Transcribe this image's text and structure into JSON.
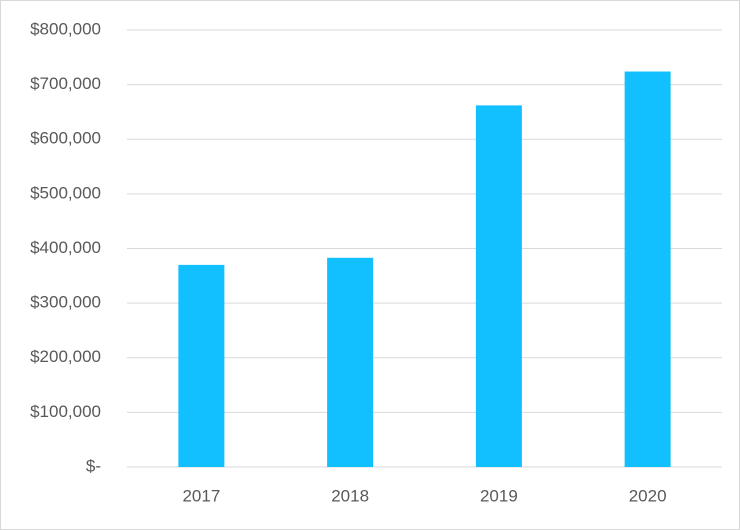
{
  "chart_data": {
    "type": "bar",
    "categories": [
      "2017",
      "2018",
      "2019",
      "2020"
    ],
    "values": [
      370000,
      383000,
      662000,
      724000
    ],
    "color": "#12bfff",
    "ylim": [
      0,
      800000
    ],
    "yticks": [
      {
        "value": 0,
        "label": "$-"
      },
      {
        "value": 100000,
        "label": "$100,000"
      },
      {
        "value": 200000,
        "label": "$200,000"
      },
      {
        "value": 300000,
        "label": "$300,000"
      },
      {
        "value": 400000,
        "label": "$400,000"
      },
      {
        "value": 500000,
        "label": "$500,000"
      },
      {
        "value": 600000,
        "label": "$600,000"
      },
      {
        "value": 700000,
        "label": "$700,000"
      },
      {
        "value": 800000,
        "label": "$800,000"
      }
    ],
    "grid": true
  }
}
